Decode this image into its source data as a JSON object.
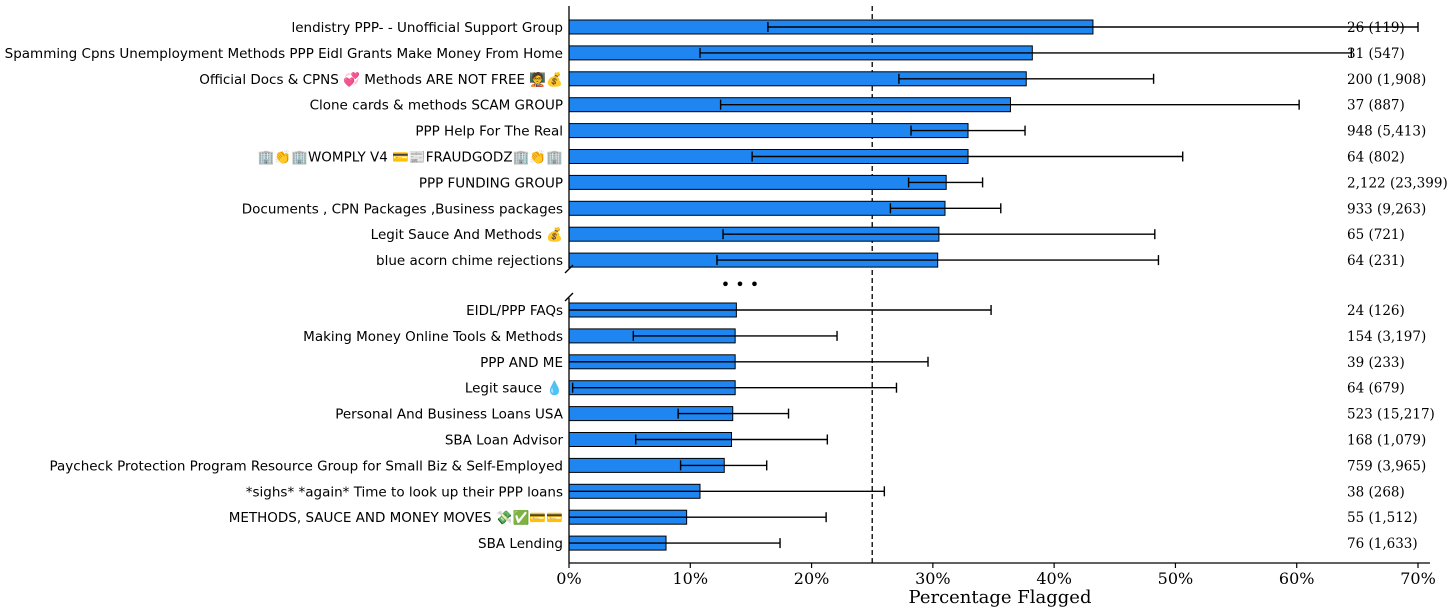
{
  "chart_data": {
    "type": "bar",
    "orientation": "horizontal",
    "xlabel": "Percentage Flagged",
    "xlim": [
      0,
      70
    ],
    "xticks": [
      "0%",
      "10%",
      "20%",
      "30%",
      "40%",
      "50%",
      "60%",
      "70%"
    ],
    "reference_line": 25,
    "axis_break_symbol": "• • •",
    "bar_color": "#1f85f0",
    "groups": [
      [
        {
          "label": "lendistry PPP- - Unofficial Support Group",
          "value": 43.2,
          "err_low": 16.4,
          "err_high": 70.0,
          "count": "26 (119)"
        },
        {
          "label": "Spamming Cpns Unemployment Methods PPP Eidl Grants Make Money From Home",
          "value": 38.2,
          "err_low": 10.8,
          "err_high": 64.5,
          "count": "31 (547)"
        },
        {
          "label": "Official Docs & CPNS 💞 Methods ARE NOT FREE 🧑‍🏫💰",
          "value": 37.7,
          "err_low": 27.2,
          "err_high": 48.2,
          "count": "200 (1,908)"
        },
        {
          "label": "Clone cards & methods SCAM GROUP",
          "value": 36.4,
          "err_low": 12.5,
          "err_high": 60.2,
          "count": "37 (887)"
        },
        {
          "label": "PPP Help For The Real",
          "value": 32.9,
          "err_low": 28.2,
          "err_high": 37.6,
          "count": "948 (5,413)"
        },
        {
          "label": "🏢👏🏢WOMPLY V4 💳📰FRAUDGODZ🏢👏🏢",
          "value": 32.9,
          "err_low": 15.1,
          "err_high": 50.6,
          "count": "64 (802)"
        },
        {
          "label": "PPP FUNDING GROUP",
          "value": 31.1,
          "err_low": 28.0,
          "err_high": 34.1,
          "count": "2,122 (23,399)"
        },
        {
          "label": "Documents , CPN Packages ,Business packages",
          "value": 31.0,
          "err_low": 26.5,
          "err_high": 35.6,
          "count": "933 (9,263)"
        },
        {
          "label": "Legit Sauce And Methods 💰",
          "value": 30.5,
          "err_low": 12.7,
          "err_high": 48.3,
          "count": "65 (721)"
        },
        {
          "label": "blue acorn chime rejections",
          "value": 30.4,
          "err_low": 12.2,
          "err_high": 48.6,
          "count": "64 (231)"
        }
      ],
      [
        {
          "label": "EIDL/PPP FAQs",
          "value": 13.8,
          "err_low": 0.0,
          "err_high": 34.8,
          "count": "24 (126)"
        },
        {
          "label": "Making Money Online Tools & Methods",
          "value": 13.7,
          "err_low": 5.3,
          "err_high": 22.1,
          "count": "154 (3,197)"
        },
        {
          "label": "PPP AND ME",
          "value": 13.7,
          "err_low": 0.0,
          "err_high": 29.6,
          "count": "39 (233)"
        },
        {
          "label": "Legit sauce 💧",
          "value": 13.7,
          "err_low": 0.3,
          "err_high": 27.0,
          "count": "64 (679)"
        },
        {
          "label": "Personal And Business Loans USA",
          "value": 13.5,
          "err_low": 9.0,
          "err_high": 18.1,
          "count": "523 (15,217)"
        },
        {
          "label": "SBA Loan Advisor",
          "value": 13.4,
          "err_low": 5.5,
          "err_high": 21.3,
          "count": "168 (1,079)"
        },
        {
          "label": "Paycheck Protection Program Resource Group for Small Biz & Self-Employed",
          "value": 12.8,
          "err_low": 9.2,
          "err_high": 16.3,
          "count": "759 (3,965)"
        },
        {
          "label": "*sighs* *again* Time to look up their PPP loans",
          "value": 10.8,
          "err_low": 0.0,
          "err_high": 26.0,
          "count": "38 (268)"
        },
        {
          "label": "METHODS, SAUCE AND MONEY MOVES 💸✅💳💳",
          "value": 9.7,
          "err_low": 0.0,
          "err_high": 21.2,
          "count": "55 (1,512)"
        },
        {
          "label": "SBA Lending",
          "value": 8.0,
          "err_low": 0.0,
          "err_high": 17.4,
          "count": "76 (1,633)"
        }
      ]
    ]
  }
}
